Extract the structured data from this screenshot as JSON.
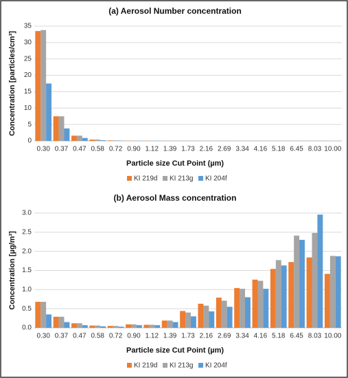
{
  "chart_data": [
    {
      "type": "bar",
      "title": "(a) Aerosol Number concentration",
      "x_label": "Particle size Cut Point (µm)",
      "y_label": "Concentration [particles/cm³]",
      "categories": [
        "0.30",
        "0.37",
        "0.47",
        "0.58",
        "0.72",
        "0.90",
        "1.12",
        "1.39",
        "1.73",
        "2.16",
        "2.69",
        "3.34",
        "4.16",
        "5.18",
        "6.45",
        "8.03",
        "10.00"
      ],
      "series": [
        {
          "name": "KI 219d",
          "color": "#ed7d31",
          "values": [
            33.5,
            7.5,
            1.6,
            0.4,
            0.15,
            0.07,
            0.04,
            0.03,
            0.02,
            0.02,
            0.02,
            0.02,
            0.02,
            0.02,
            0.02,
            0.02,
            0.01
          ]
        },
        {
          "name": "KI 213g",
          "color": "#a5a5a5",
          "values": [
            33.8,
            7.5,
            1.6,
            0.4,
            0.15,
            0.07,
            0.04,
            0.03,
            0.02,
            0.02,
            0.02,
            0.02,
            0.02,
            0.02,
            0.02,
            0.02,
            0.01
          ]
        },
        {
          "name": "KI 204f",
          "color": "#5b9bd5",
          "values": [
            17.5,
            3.8,
            0.9,
            0.2,
            0.08,
            0.04,
            0.03,
            0.02,
            0.02,
            0.02,
            0.02,
            0.02,
            0.02,
            0.02,
            0.02,
            0.02,
            0.01
          ]
        }
      ],
      "ylim": [
        0,
        35
      ],
      "yticks": [
        0,
        5,
        10,
        15,
        20,
        25,
        30,
        35
      ],
      "grid": true,
      "legend": "bottom"
    },
    {
      "type": "bar",
      "title": "(b) Aerosol Mass concentration",
      "x_label": "Particle size Cut Point (µm)",
      "y_label": "Concentration [µg/m³]",
      "categories": [
        "0.30",
        "0.37",
        "0.47",
        "0.58",
        "0.72",
        "0.90",
        "1.12",
        "1.39",
        "1.73",
        "2.16",
        "2.69",
        "3.34",
        "4.16",
        "5.18",
        "6.45",
        "8.03",
        "10.00"
      ],
      "series": [
        {
          "name": "KI 219d",
          "color": "#ed7d31",
          "values": [
            0.68,
            0.29,
            0.12,
            0.06,
            0.05,
            0.09,
            0.08,
            0.19,
            0.44,
            0.63,
            0.79,
            1.04,
            1.26,
            1.54,
            1.72,
            1.84,
            1.41
          ]
        },
        {
          "name": "KI 213g",
          "color": "#a5a5a5",
          "values": [
            0.68,
            0.29,
            0.12,
            0.06,
            0.05,
            0.09,
            0.08,
            0.19,
            0.4,
            0.58,
            0.71,
            1.02,
            1.23,
            1.77,
            2.41,
            2.48,
            1.88
          ]
        },
        {
          "name": "KI 204f",
          "color": "#5b9bd5",
          "values": [
            0.35,
            0.15,
            0.07,
            0.04,
            0.03,
            0.07,
            0.07,
            0.15,
            0.3,
            0.43,
            0.55,
            0.8,
            1.02,
            1.63,
            2.3,
            2.96,
            1.87
          ]
        }
      ],
      "ylim": [
        0,
        3
      ],
      "yticks": [
        {
          "value": 0,
          "label": "0.0"
        },
        0.5,
        {
          "value": 1,
          "label": "1.0"
        },
        1.5,
        {
          "value": 2,
          "label": "2.0"
        },
        2.5,
        {
          "value": 3,
          "label": "3.0"
        }
      ],
      "grid": true,
      "legend": "bottom"
    }
  ]
}
